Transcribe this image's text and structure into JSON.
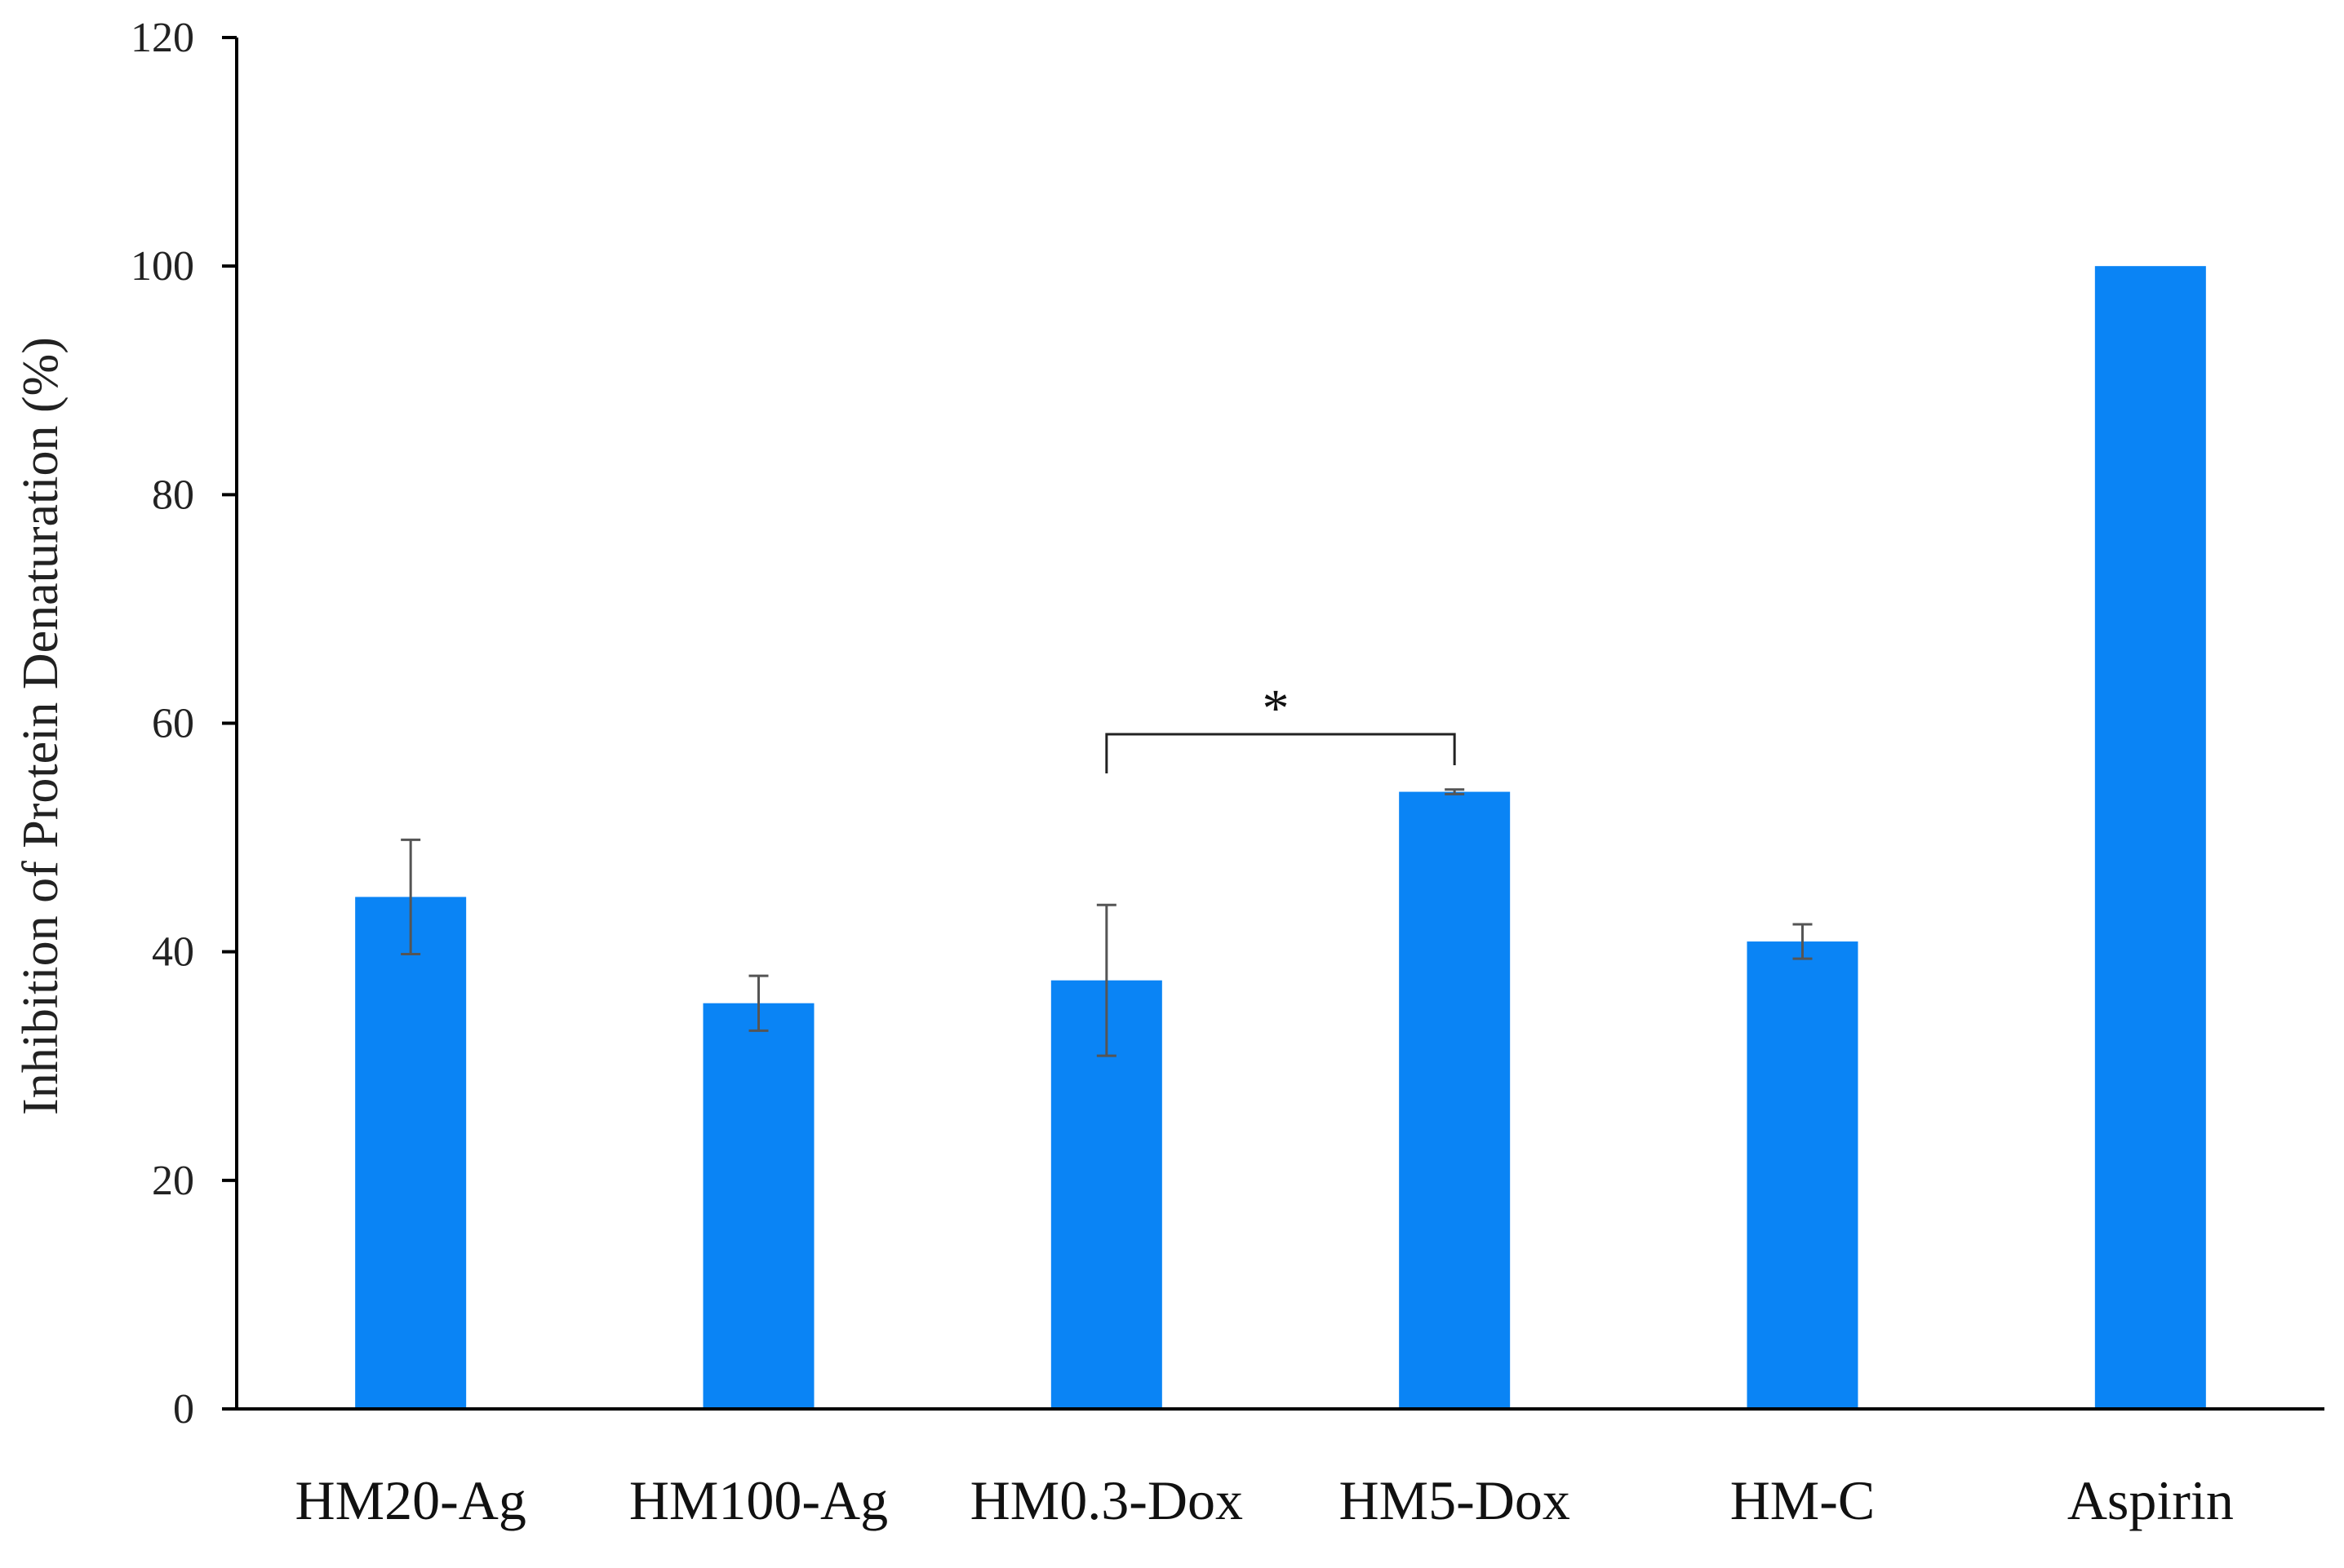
{
  "chart_data": {
    "type": "bar",
    "title": "",
    "xlabel": "",
    "ylabel": "Inhibition of Protein Denaturation (%)",
    "ylim": [
      0,
      120
    ],
    "yticks": [
      0,
      20,
      40,
      60,
      80,
      100,
      120
    ],
    "grid": false,
    "legend": "none",
    "bar_color": "#0A84F5",
    "categories": [
      "HM20-Ag",
      "HM100-Ag",
      "HM0.3-Dox",
      "HM5-Dox",
      "HM-C",
      "Aspirin"
    ],
    "values": [
      44.8,
      35.5,
      37.5,
      54.0,
      40.9,
      100.0
    ],
    "errors": [
      5.0,
      2.4,
      6.6,
      0.2,
      1.5,
      0
    ],
    "annotations": [
      {
        "type": "significance-bracket",
        "from": "HM0.3-Dox",
        "to": "HM5-Dox",
        "label": "*"
      }
    ]
  }
}
